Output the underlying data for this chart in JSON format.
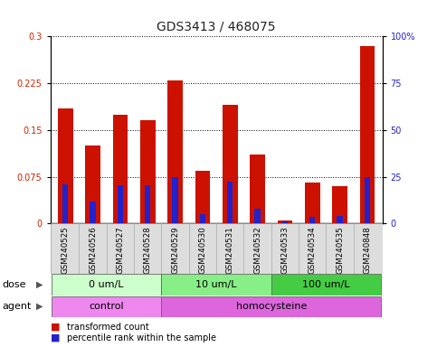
{
  "title": "GDS3413 / 468075",
  "samples": [
    "GSM240525",
    "GSM240526",
    "GSM240527",
    "GSM240528",
    "GSM240529",
    "GSM240530",
    "GSM240531",
    "GSM240532",
    "GSM240533",
    "GSM240534",
    "GSM240535",
    "GSM240848"
  ],
  "transformed_count": [
    0.185,
    0.125,
    0.175,
    0.165,
    0.23,
    0.085,
    0.19,
    0.11,
    0.005,
    0.065,
    0.06,
    0.285
  ],
  "percentile_rank_pct": [
    21.0,
    11.5,
    20.5,
    20.5,
    25.0,
    5.0,
    22.5,
    8.0,
    1.0,
    3.5,
    4.0,
    25.0
  ],
  "bar_color": "#cc1100",
  "blue_color": "#2222cc",
  "ylim_left": [
    0,
    0.3
  ],
  "ylim_right": [
    0,
    100
  ],
  "yticks_left": [
    0,
    0.075,
    0.15,
    0.225,
    0.3
  ],
  "ytick_labels_left": [
    "0",
    "0.075",
    "0.15",
    "0.225",
    "0.3"
  ],
  "yticks_right": [
    0,
    25,
    50,
    75,
    100
  ],
  "ytick_labels_right": [
    "0",
    "25",
    "50",
    "75",
    "100%"
  ],
  "dose_groups": [
    {
      "label": "0 um/L",
      "start": 0,
      "end": 4,
      "color": "#ccffcc"
    },
    {
      "label": "10 um/L",
      "start": 4,
      "end": 8,
      "color": "#88ee88"
    },
    {
      "label": "100 um/L",
      "start": 8,
      "end": 12,
      "color": "#44cc44"
    }
  ],
  "agent_groups": [
    {
      "label": "control",
      "start": 0,
      "end": 4,
      "color": "#ee88ee"
    },
    {
      "label": "homocysteine",
      "start": 4,
      "end": 12,
      "color": "#dd66dd"
    }
  ],
  "dose_label": "dose",
  "agent_label": "agent",
  "legend_items": [
    {
      "label": "transformed count",
      "color": "#cc1100"
    },
    {
      "label": "percentile rank within the sample",
      "color": "#2222cc"
    }
  ],
  "background_color": "#ffffff",
  "grid_color": "#000000",
  "bar_width": 0.55,
  "title_fontsize": 10,
  "tick_fontsize": 7,
  "xlim": [
    -0.55,
    11.55
  ]
}
